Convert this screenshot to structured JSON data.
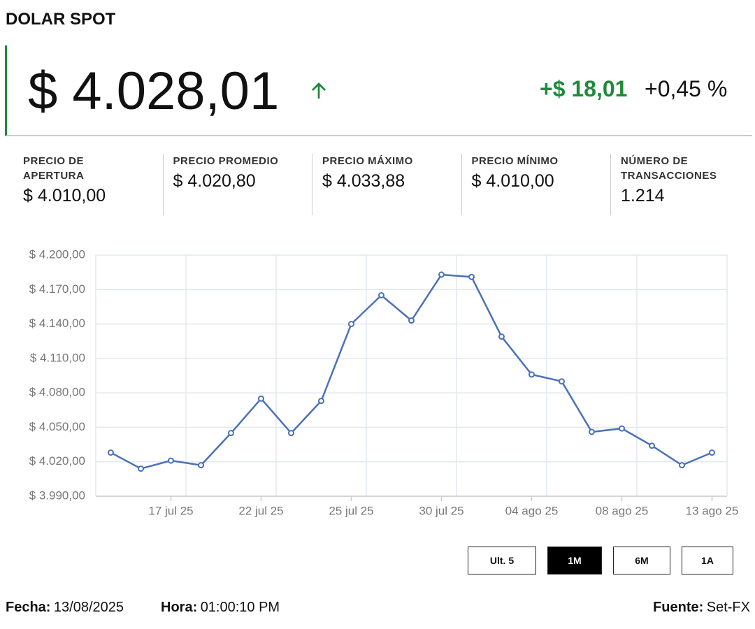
{
  "header": {
    "title": "DOLAR SPOT"
  },
  "price": {
    "current": "$ 4.028,01",
    "change": "+$ 18,01",
    "change_pct": "+0,45 %"
  },
  "stats": [
    {
      "label": "PRECIO DE APERTURA",
      "value": "$ 4.010,00"
    },
    {
      "label": "PRECIO PROMEDIO",
      "value": "$ 4.020,80"
    },
    {
      "label": "PRECIO MÁXIMO",
      "value": "$ 4.033,88"
    },
    {
      "label": "PRECIO MÍNIMO",
      "value": "$ 4.010,00"
    },
    {
      "label": "NÚMERO DE TRANSACCIONES",
      "value": "1.214"
    }
  ],
  "chart_data": {
    "type": "line",
    "categories": [
      null,
      null,
      "17 jul 25",
      null,
      null,
      "22 jul 25",
      null,
      null,
      "25 jul 25",
      null,
      null,
      "30 jul 25",
      null,
      null,
      "04 ago 25",
      null,
      null,
      "08 ago 25",
      null,
      null,
      "13 ago 25"
    ],
    "series": [
      {
        "color": "#4a72b8",
        "values": [
          4028,
          4014,
          4021,
          4017,
          4045,
          4075,
          4045,
          4073,
          4140,
          4165,
          4143,
          4183,
          4181,
          4129,
          4096,
          4090,
          4046,
          4049,
          4034,
          4017,
          4028
        ]
      }
    ],
    "ylim": [
      3990,
      4200
    ],
    "yticks": [
      {
        "value": 3990,
        "label": "$ 3.990,00"
      },
      {
        "value": 4020,
        "label": "$ 4.020,00"
      },
      {
        "value": 4050,
        "label": "$ 4.050,00"
      },
      {
        "value": 4080,
        "label": "$ 4.080,00"
      },
      {
        "value": 4110,
        "label": "$ 4.110,00"
      },
      {
        "value": 4140,
        "label": "$ 4.140,00"
      },
      {
        "value": 4170,
        "label": "$ 4.170,00"
      },
      {
        "value": 4200,
        "label": "$ 4.200,00"
      }
    ],
    "grid": true
  },
  "buttons": [
    {
      "label": "Ult. 5",
      "active": false
    },
    {
      "label": "1M",
      "active": true
    },
    {
      "label": "6M",
      "active": false
    },
    {
      "label": "1A",
      "active": false
    }
  ],
  "footer": {
    "date_label": "Fecha:",
    "date": "13/08/2025",
    "time_label": "Hora:",
    "time": "01:00:10 PM",
    "source_label": "Fuente:",
    "source": "Set-FX"
  }
}
